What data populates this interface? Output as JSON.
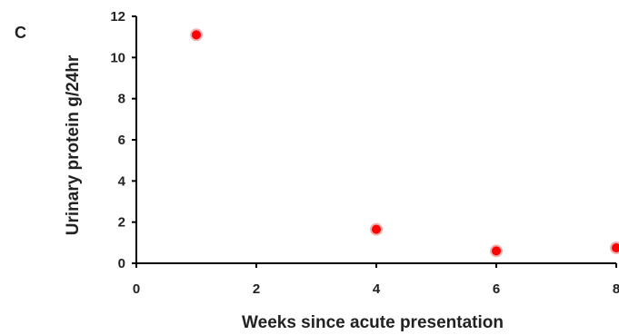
{
  "panel_label": "C",
  "chart_data": {
    "type": "scatter",
    "xlabel": "Weeks since acute presentation",
    "ylabel": "Urinary protein g/24hr",
    "xlim": [
      0,
      8
    ],
    "ylim": [
      0,
      12
    ],
    "x_ticks": [
      "0",
      "2",
      "4",
      "6",
      "8"
    ],
    "y_ticks": [
      "0",
      "2",
      "4",
      "6",
      "8",
      "10",
      "12"
    ],
    "points": [
      {
        "x": 1,
        "y": 11.1
      },
      {
        "x": 4,
        "y": 1.65
      },
      {
        "x": 6,
        "y": 0.6
      },
      {
        "x": 8,
        "y": 0.75
      }
    ],
    "marker_color": "#ff0000",
    "grid": false
  }
}
